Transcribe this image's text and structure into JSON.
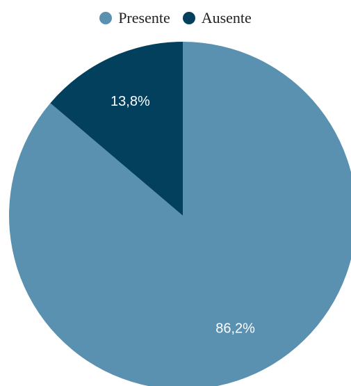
{
  "chart_data": {
    "type": "pie",
    "title": "",
    "legend_position": "top",
    "slices": [
      {
        "label": "Presente",
        "value": 86.2,
        "display": "86,2%",
        "color": "#5a91b0"
      },
      {
        "label": "Ausente",
        "value": 13.8,
        "display": "13,8%",
        "color": "#02405e"
      }
    ]
  }
}
